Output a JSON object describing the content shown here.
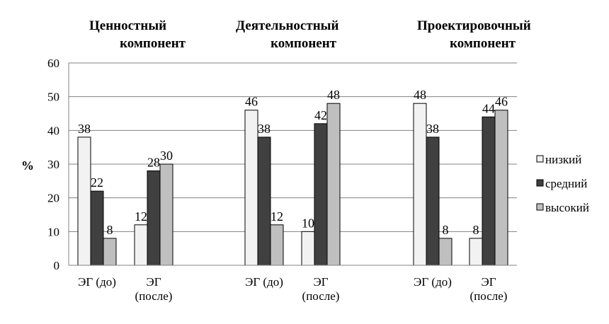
{
  "chart_data": {
    "type": "bar",
    "ylabel": "%",
    "ylim": [
      0,
      60
    ],
    "yticks": [
      0,
      10,
      20,
      30,
      40,
      50,
      60
    ],
    "grid": true,
    "legend_position": "right",
    "panels": [
      {
        "title_lines": [
          "Ценностный",
          "компонент"
        ]
      },
      {
        "title_lines": [
          "Деятельностный",
          "компонент"
        ]
      },
      {
        "title_lines": [
          "Проектировочный",
          "компонент"
        ]
      }
    ],
    "categories": [
      [
        "ЭГ (до)"
      ],
      [
        "ЭГ",
        "(после)"
      ],
      [
        "ЭГ (до)"
      ],
      [
        "ЭГ",
        "(после)"
      ],
      [
        "ЭГ (до)"
      ],
      [
        "ЭГ",
        "(после)"
      ]
    ],
    "series": [
      {
        "name": "низкий",
        "color": "#f2f2f2",
        "values": [
          38,
          12,
          46,
          10,
          48,
          8
        ]
      },
      {
        "name": "средний",
        "color": "#404040",
        "values": [
          22,
          28,
          38,
          42,
          38,
          44
        ]
      },
      {
        "name": "высокий",
        "color": "#bfbfbf",
        "values": [
          8,
          30,
          12,
          48,
          8,
          46
        ]
      }
    ]
  }
}
